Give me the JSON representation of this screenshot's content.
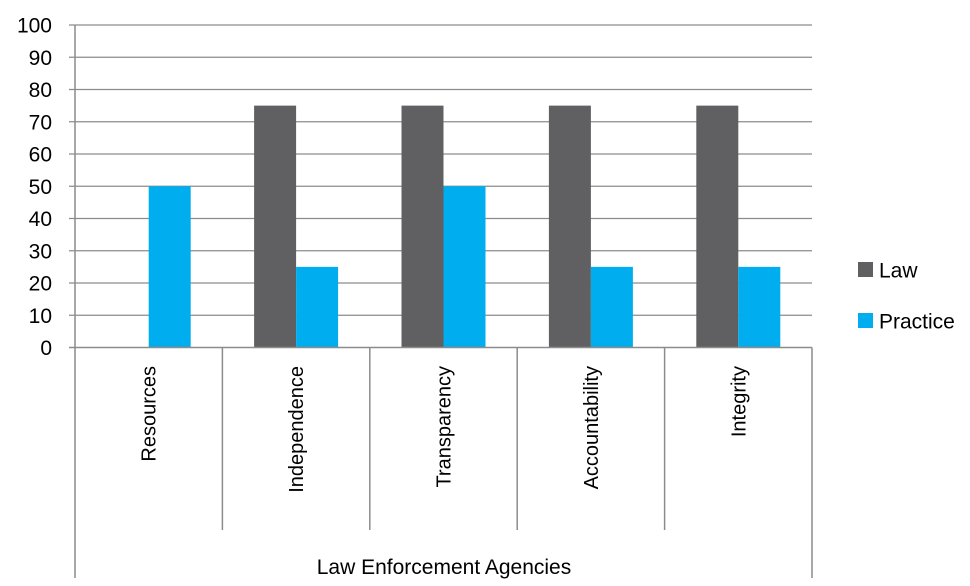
{
  "chart_data": {
    "type": "bar",
    "title": "",
    "xlabel": "",
    "ylabel": "",
    "group_label": "Law Enforcement Agencies",
    "categories": [
      "Resources",
      "Independence",
      "Transparency",
      "Accountability",
      "Integrity"
    ],
    "series": [
      {
        "name": "Law",
        "color": "#606062",
        "values": [
          0,
          75,
          75,
          75,
          75
        ]
      },
      {
        "name": "Practice",
        "color": "#00AEEF",
        "values": [
          50,
          25,
          50,
          25,
          25
        ]
      }
    ],
    "ylim": [
      0,
      100
    ],
    "yticks": [
      0,
      10,
      20,
      30,
      40,
      50,
      60,
      70,
      80,
      90,
      100
    ],
    "grid": true,
    "legend_position": "right",
    "gridline_color": "#8C8C8C",
    "axis_color": "#8C8C8C"
  }
}
